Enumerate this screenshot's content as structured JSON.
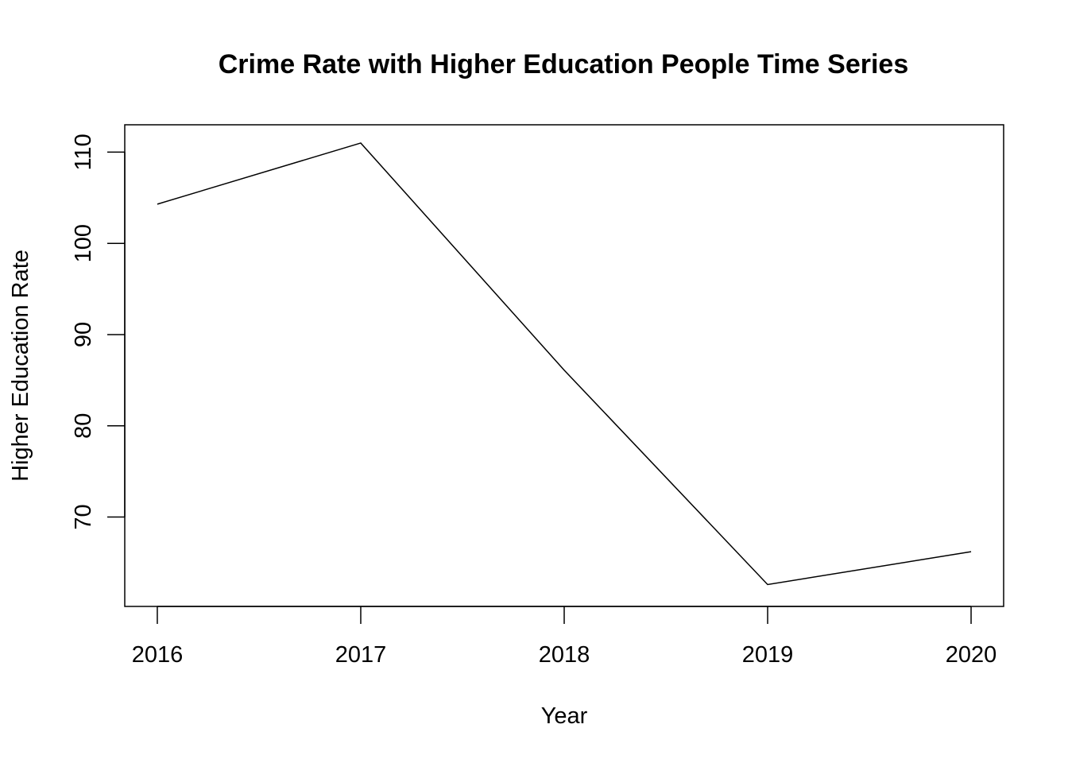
{
  "chart_data": {
    "type": "line",
    "title": "Crime Rate with Higher Education People Time Series",
    "xlabel": "Year",
    "ylabel": "Higher Education Rate",
    "x": [
      2016,
      2017,
      2018,
      2019,
      2020
    ],
    "series": [
      {
        "values": [
          104.3,
          111.0,
          86.1,
          62.6,
          66.2
        ]
      }
    ],
    "xlim": [
      2015.84,
      2020.16
    ],
    "ylim": [
      60.2,
      113.0
    ],
    "xticks": [
      2016,
      2017,
      2018,
      2019,
      2020
    ],
    "yticks": [
      70,
      80,
      90,
      100,
      110
    ],
    "grid": false,
    "line_color": "#000000"
  }
}
